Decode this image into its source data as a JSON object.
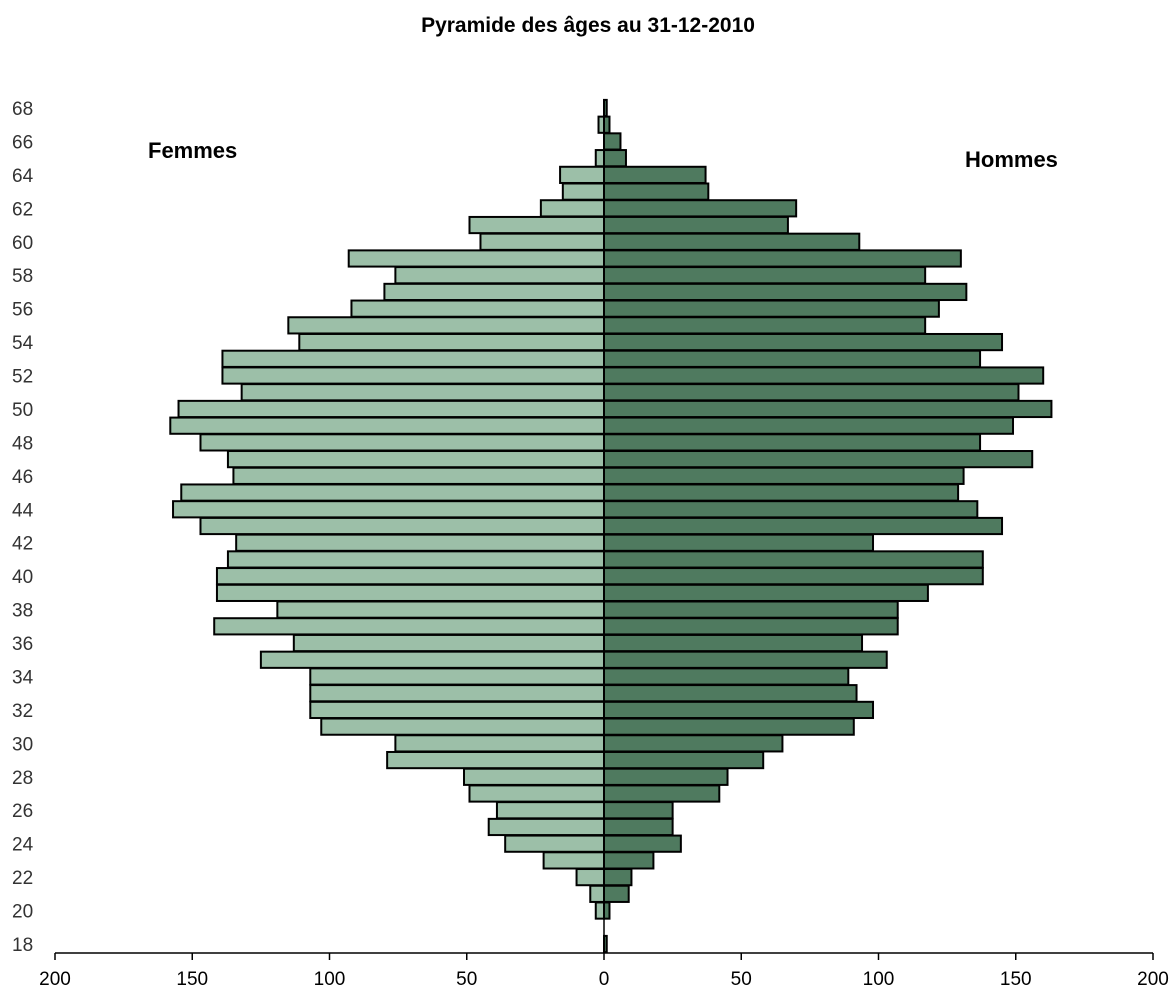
{
  "chart_data": {
    "type": "bar",
    "orientation": "horizontal-pyramid",
    "title": "Pyramide des âges au 31-12-2010",
    "xlabel": "",
    "ylabel": "",
    "xlim": [
      -200,
      200
    ],
    "ylim": [
      18,
      68
    ],
    "x_tick_values": [
      -200,
      -150,
      -100,
      -50,
      0,
      50,
      100,
      150,
      200
    ],
    "x_tick_labels": [
      "200",
      "150",
      "100",
      "50",
      "0",
      "50",
      "100",
      "150",
      "200"
    ],
    "y_tick_values": [
      18,
      20,
      22,
      24,
      26,
      28,
      30,
      32,
      34,
      36,
      38,
      40,
      42,
      44,
      46,
      48,
      50,
      52,
      54,
      56,
      58,
      60,
      62,
      64,
      66,
      68
    ],
    "y_tick_labels": [
      "18",
      "20",
      "22",
      "24",
      "26",
      "28",
      "30",
      "32",
      "34",
      "36",
      "38",
      "40",
      "42",
      "44",
      "46",
      "48",
      "50",
      "52",
      "54",
      "56",
      "58",
      "60",
      "62",
      "64",
      "66",
      "68"
    ],
    "grid": false,
    "legend": "none",
    "annotations": [
      {
        "text": "Femmes",
        "side": "left"
      },
      {
        "text": "Hommes",
        "side": "right"
      }
    ],
    "categories": [
      18,
      19,
      20,
      21,
      22,
      23,
      24,
      25,
      26,
      27,
      28,
      29,
      30,
      31,
      32,
      33,
      34,
      35,
      36,
      37,
      38,
      39,
      40,
      41,
      42,
      43,
      44,
      45,
      46,
      47,
      48,
      49,
      50,
      51,
      52,
      53,
      54,
      55,
      56,
      57,
      58,
      59,
      60,
      61,
      62,
      63,
      64,
      65,
      66,
      67,
      68
    ],
    "series": [
      {
        "name": "Femmes",
        "color": "#9cbfa8",
        "values": [
          0,
          0,
          3,
          5,
          10,
          22,
          36,
          42,
          39,
          49,
          51,
          79,
          76,
          103,
          107,
          107,
          107,
          125,
          113,
          142,
          119,
          141,
          141,
          137,
          134,
          147,
          157,
          154,
          135,
          137,
          147,
          158,
          155,
          132,
          139,
          139,
          111,
          115,
          92,
          80,
          76,
          93,
          45,
          49,
          23,
          15,
          16,
          3,
          0,
          2,
          0
        ]
      },
      {
        "name": "Hommes",
        "color": "#4f7a5f",
        "values": [
          1,
          0,
          2,
          9,
          10,
          18,
          28,
          25,
          25,
          42,
          45,
          58,
          65,
          91,
          98,
          92,
          89,
          103,
          94,
          107,
          107,
          118,
          138,
          138,
          98,
          145,
          136,
          129,
          131,
          156,
          137,
          149,
          163,
          151,
          160,
          137,
          145,
          117,
          122,
          132,
          117,
          130,
          93,
          67,
          70,
          38,
          37,
          8,
          6,
          2,
          1
        ]
      }
    ]
  }
}
